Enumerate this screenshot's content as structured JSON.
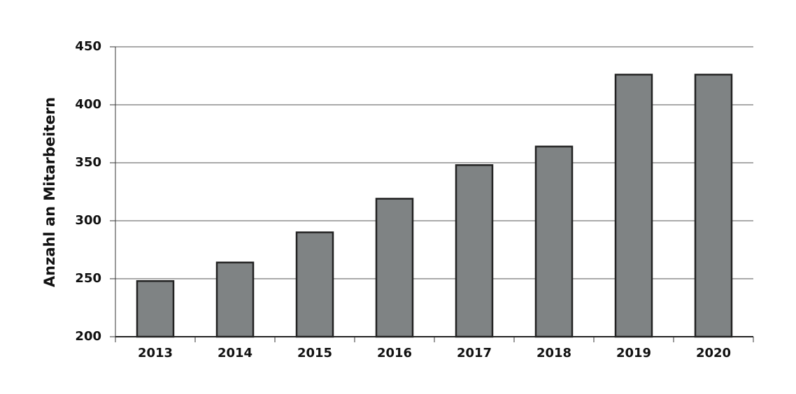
{
  "chart_data": {
    "type": "bar",
    "y_label": "Anzahl an Mitarbeitern",
    "categories": [
      "2013",
      "2014",
      "2015",
      "2016",
      "2017",
      "2018",
      "2019",
      "2020"
    ],
    "values": [
      248,
      264,
      290,
      319,
      348,
      364,
      426,
      426
    ],
    "color": "#7f8384",
    "ylim": [
      200,
      450
    ],
    "yticks": [
      200,
      250,
      300,
      350,
      400,
      450
    ],
    "grid": true
  }
}
